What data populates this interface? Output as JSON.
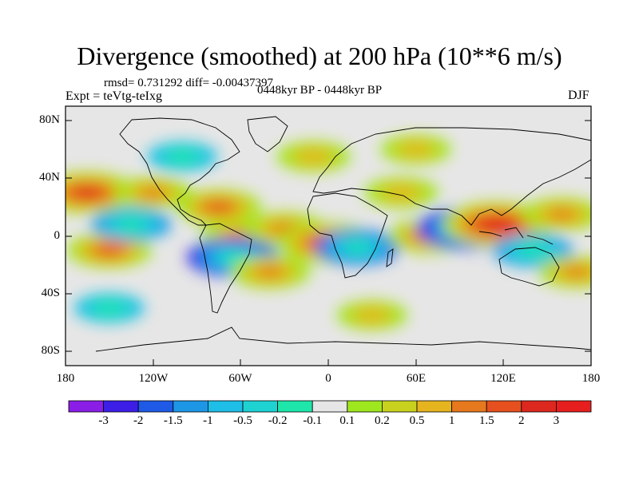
{
  "title": "Divergence (smoothed) at 200 hPa (10**6 m/s)",
  "stats": "rmsd= 0.731292 diff= -0.00437397",
  "experiment": "Expt = teVtg-teIxg",
  "period": "0448kyr BP - 0448kyr BP",
  "season": "DJF",
  "lat_labels": [
    "80N",
    "40N",
    "0",
    "40S",
    "80S"
  ],
  "lon_labels": [
    "180",
    "120W",
    "60W",
    "0",
    "60E",
    "120E",
    "180"
  ],
  "colorbar": {
    "labels": [
      "-3",
      "-2",
      "-1.5",
      "-1",
      "-0.5",
      "-0.2",
      "-0.1",
      "0.1",
      "0.2",
      "0.5",
      "1",
      "1.5",
      "2",
      "3"
    ],
    "colors": [
      "#8a1ee6",
      "#3c1ee6",
      "#1e5ae6",
      "#1e96e6",
      "#1ebee6",
      "#1ed2d2",
      "#1ee6aa",
      "#e6e6e6",
      "#9ee61e",
      "#c8d21e",
      "#e6b41e",
      "#e6781e",
      "#e6501e",
      "#dc281e",
      "#e61e1e"
    ]
  },
  "chart_data": {
    "type": "heatmap",
    "variable": "Divergence (smoothed) at 200 hPa",
    "units": "10**6 m/s",
    "lon_range": [
      -180,
      180
    ],
    "lat_range": [
      -90,
      90
    ],
    "levels": [
      -3,
      -2,
      -1.5,
      -1,
      -0.5,
      -0.2,
      -0.1,
      0.1,
      0.2,
      0.5,
      1,
      1.5,
      2,
      3
    ],
    "features": [
      {
        "lon": -165,
        "lat": 30,
        "value": 2.5
      },
      {
        "lon": -150,
        "lat": -10,
        "value": 1.5
      },
      {
        "lon": -120,
        "lat": 30,
        "value": 1.0
      },
      {
        "lon": -135,
        "lat": 8,
        "value": -1.2
      },
      {
        "lon": -75,
        "lat": 20,
        "value": 1.5
      },
      {
        "lon": -60,
        "lat": 0,
        "value": 1.2
      },
      {
        "lon": -30,
        "lat": 5,
        "value": 1.2
      },
      {
        "lon": -65,
        "lat": -15,
        "value": -2.0
      },
      {
        "lon": -40,
        "lat": -25,
        "value": 1.2
      },
      {
        "lon": 0,
        "lat": -5,
        "value": 2.5
      },
      {
        "lon": 20,
        "lat": -8,
        "value": -1.5
      },
      {
        "lon": 50,
        "lat": 30,
        "value": 0.8
      },
      {
        "lon": 70,
        "lat": 0,
        "value": 1.5
      },
      {
        "lon": 95,
        "lat": 5,
        "value": -2.5
      },
      {
        "lon": 115,
        "lat": 8,
        "value": 3.0
      },
      {
        "lon": 160,
        "lat": 15,
        "value": 1.2
      },
      {
        "lon": 140,
        "lat": -10,
        "value": -1.2
      },
      {
        "lon": 170,
        "lat": -25,
        "value": 1.0
      },
      {
        "lon": -10,
        "lat": 55,
        "value": 0.8
      },
      {
        "lon": 60,
        "lat": 60,
        "value": 0.6
      },
      {
        "lon": -100,
        "lat": 55,
        "value": -0.6
      },
      {
        "lon": 30,
        "lat": -55,
        "value": 0.6
      },
      {
        "lon": -150,
        "lat": -50,
        "value": -0.6
      }
    ]
  }
}
